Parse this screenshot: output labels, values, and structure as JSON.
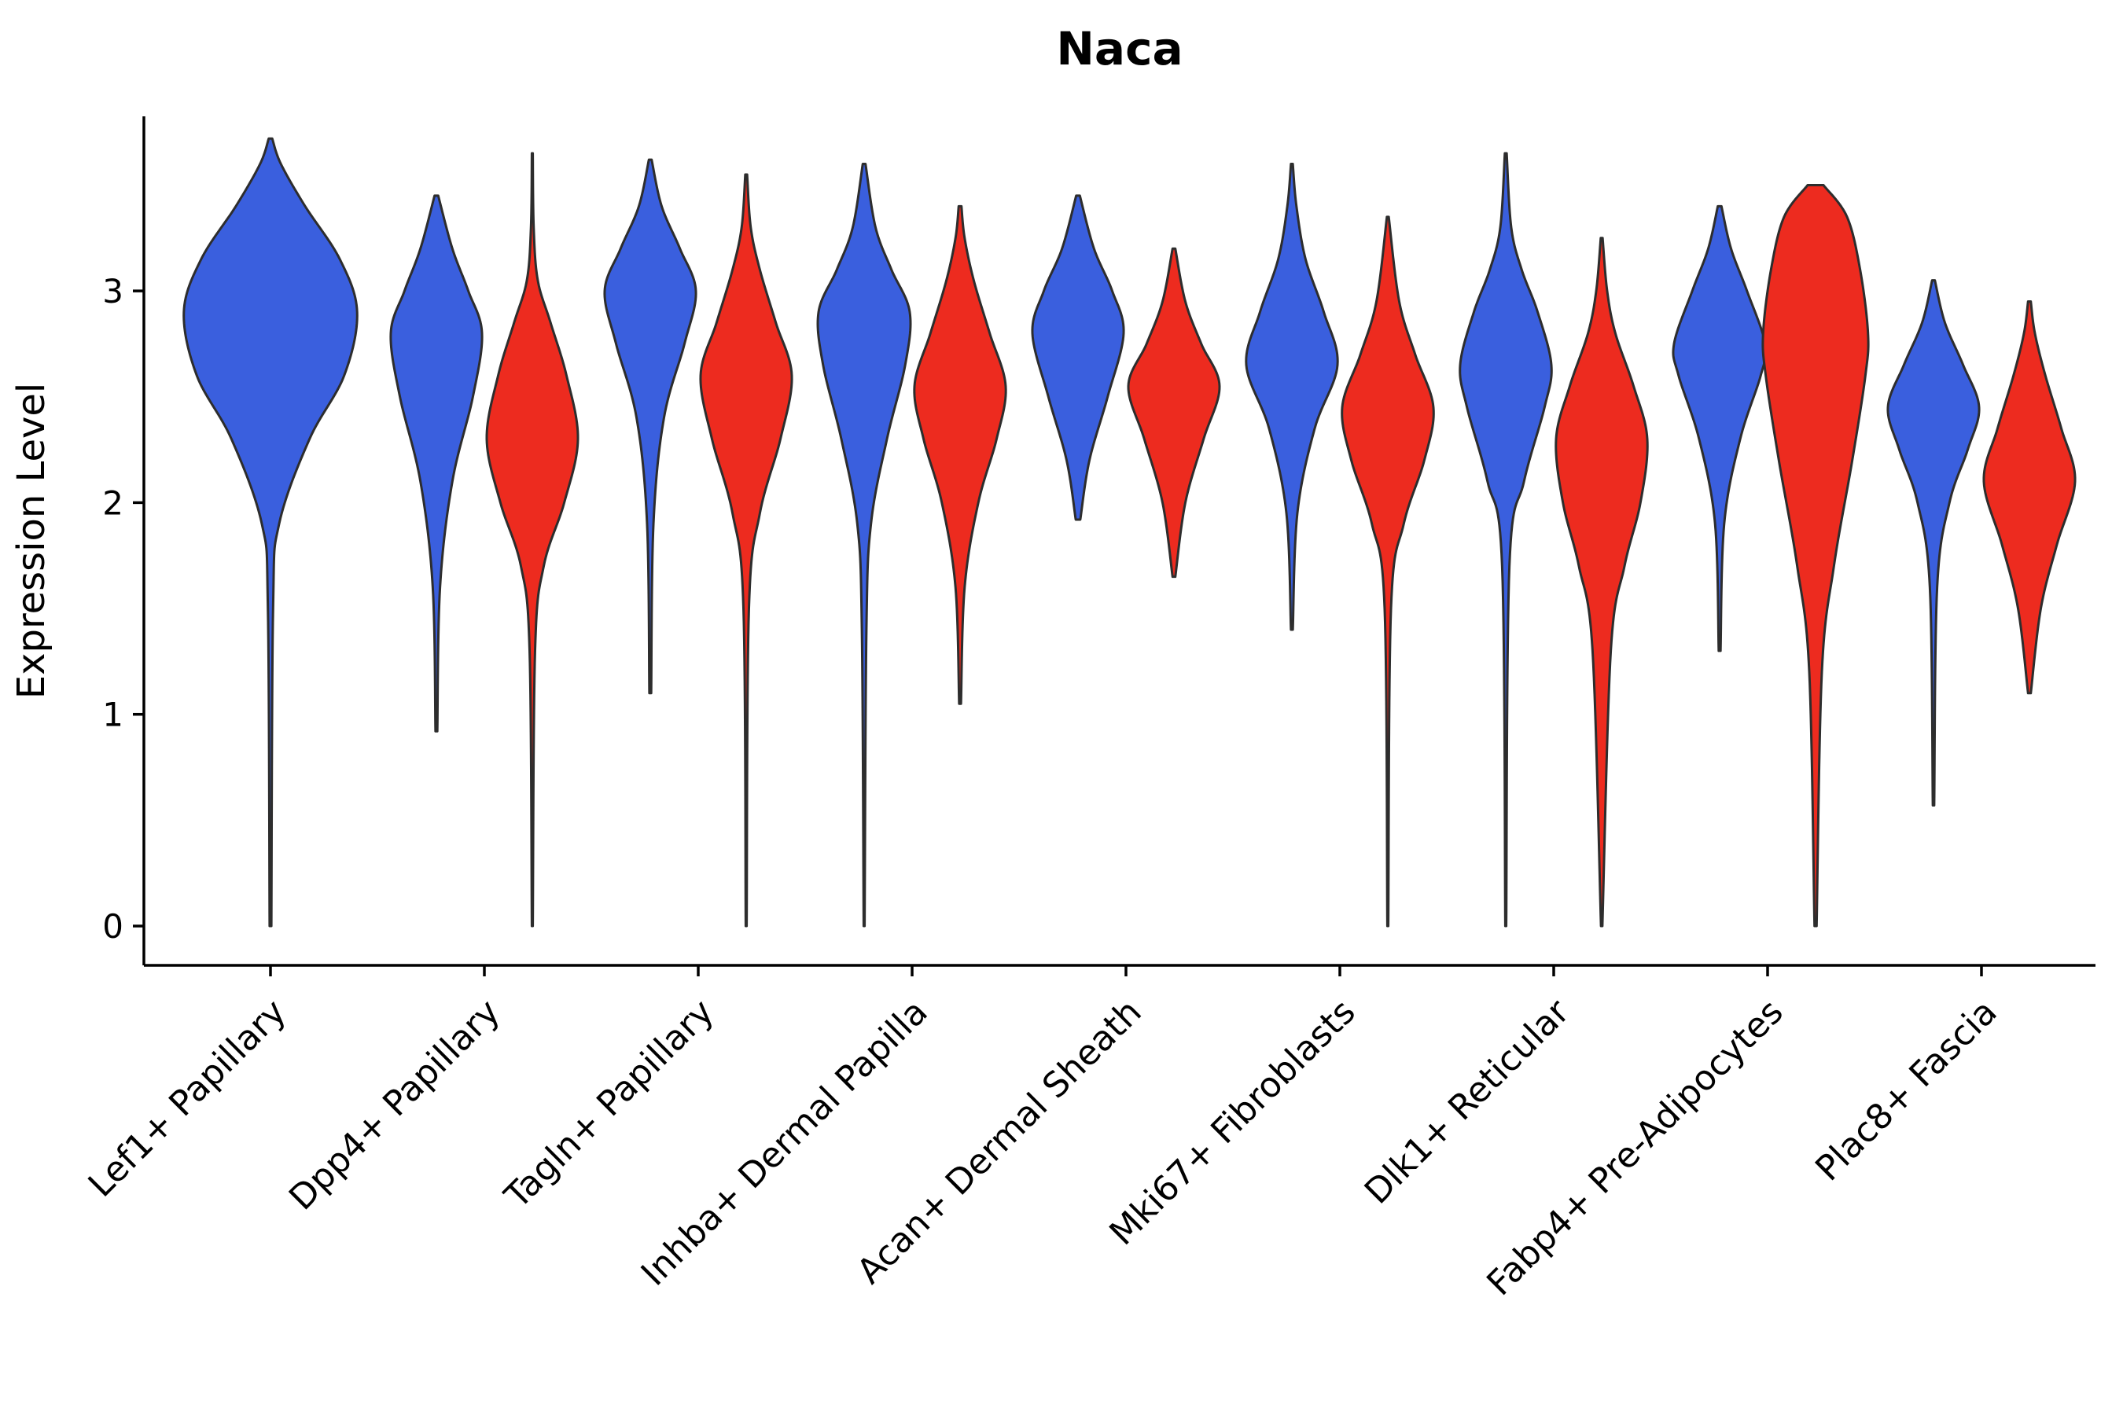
{
  "title": "Naca",
  "axes": {
    "ylabel": "Expression Level",
    "xlabel": "",
    "yticks": [
      0,
      1,
      2,
      3
    ],
    "ylim": [
      -0.15,
      3.85
    ]
  },
  "colors": {
    "blue": "#3A5FDE",
    "red": "#ED2B1F",
    "stroke": "#2d2d2d",
    "axis": "#000000"
  },
  "chart_data": {
    "type": "violin",
    "title": "Naca",
    "ylabel": "Expression Level",
    "xlabel": "",
    "yticks": [
      0,
      1,
      2,
      3
    ],
    "ylim": [
      -0.15,
      3.85
    ],
    "legend": "none",
    "grid": false,
    "categories": [
      "Lef1+ Papillary",
      "Dpp4+ Papillary",
      "Tagln+ Papillary",
      "Inhba+ Dermal Papilla",
      "Acan+ Dermal Sheath",
      "Mki67+ Fibroblasts",
      "Dlk1+ Reticular",
      "Fabp4+ Pre-Adipocytes",
      "Plac8+ Fascia"
    ],
    "palette": {
      "blue": "#3A5FDE",
      "red": "#ED2B1F"
    },
    "violins": [
      {
        "category_index": 0,
        "group": "blue",
        "single": true,
        "width_scale": 1.9,
        "min": 0.0,
        "max": 3.72,
        "peak": 2.9,
        "profile": [
          [
            0.0,
            0.01
          ],
          [
            1.5,
            0.03
          ],
          [
            1.9,
            0.1
          ],
          [
            2.3,
            0.45
          ],
          [
            2.6,
            0.85
          ],
          [
            2.9,
            1.0
          ],
          [
            3.15,
            0.8
          ],
          [
            3.4,
            0.4
          ],
          [
            3.6,
            0.12
          ],
          [
            3.72,
            0.02
          ]
        ]
      },
      {
        "category_index": 1,
        "group": "blue",
        "single": false,
        "width_scale": 1.0,
        "min": 0.92,
        "max": 3.45,
        "peak": 2.8,
        "profile": [
          [
            0.92,
            0.02
          ],
          [
            1.6,
            0.08
          ],
          [
            2.1,
            0.35
          ],
          [
            2.5,
            0.8
          ],
          [
            2.8,
            1.0
          ],
          [
            3.0,
            0.7
          ],
          [
            3.2,
            0.35
          ],
          [
            3.45,
            0.04
          ]
        ]
      },
      {
        "category_index": 1,
        "group": "red",
        "single": false,
        "width_scale": 1.0,
        "min": 0.0,
        "max": 3.65,
        "peak": 2.3,
        "profile": [
          [
            0.0,
            0.01
          ],
          [
            1.3,
            0.06
          ],
          [
            1.7,
            0.25
          ],
          [
            2.0,
            0.7
          ],
          [
            2.3,
            1.0
          ],
          [
            2.6,
            0.75
          ],
          [
            2.85,
            0.4
          ],
          [
            3.05,
            0.12
          ],
          [
            3.3,
            0.03
          ],
          [
            3.65,
            0.01
          ]
        ]
      },
      {
        "category_index": 2,
        "group": "blue",
        "single": false,
        "width_scale": 1.0,
        "min": 1.1,
        "max": 3.62,
        "peak": 3.0,
        "profile": [
          [
            1.1,
            0.02
          ],
          [
            1.9,
            0.07
          ],
          [
            2.4,
            0.3
          ],
          [
            2.75,
            0.75
          ],
          [
            3.0,
            1.0
          ],
          [
            3.2,
            0.65
          ],
          [
            3.4,
            0.25
          ],
          [
            3.62,
            0.03
          ]
        ]
      },
      {
        "category_index": 2,
        "group": "red",
        "single": false,
        "width_scale": 1.0,
        "min": 0.0,
        "max": 3.55,
        "peak": 2.6,
        "profile": [
          [
            0.0,
            0.01
          ],
          [
            1.5,
            0.06
          ],
          [
            1.95,
            0.3
          ],
          [
            2.3,
            0.75
          ],
          [
            2.6,
            1.0
          ],
          [
            2.85,
            0.65
          ],
          [
            3.1,
            0.3
          ],
          [
            3.3,
            0.1
          ],
          [
            3.55,
            0.02
          ]
        ]
      },
      {
        "category_index": 3,
        "group": "blue",
        "single": false,
        "width_scale": 1.0,
        "min": 0.0,
        "max": 3.6,
        "peak": 2.9,
        "profile": [
          [
            0.0,
            0.01
          ],
          [
            1.4,
            0.05
          ],
          [
            1.9,
            0.15
          ],
          [
            2.3,
            0.5
          ],
          [
            2.65,
            0.9
          ],
          [
            2.9,
            1.0
          ],
          [
            3.1,
            0.6
          ],
          [
            3.3,
            0.25
          ],
          [
            3.6,
            0.03
          ]
        ]
      },
      {
        "category_index": 3,
        "group": "red",
        "single": false,
        "width_scale": 1.0,
        "min": 1.05,
        "max": 3.4,
        "peak": 2.55,
        "profile": [
          [
            1.05,
            0.02
          ],
          [
            1.6,
            0.1
          ],
          [
            2.0,
            0.4
          ],
          [
            2.3,
            0.8
          ],
          [
            2.55,
            1.0
          ],
          [
            2.8,
            0.65
          ],
          [
            3.05,
            0.3
          ],
          [
            3.25,
            0.1
          ],
          [
            3.4,
            0.03
          ]
        ]
      },
      {
        "category_index": 4,
        "group": "blue",
        "single": false,
        "width_scale": 1.0,
        "min": 1.92,
        "max": 3.45,
        "peak": 2.8,
        "profile": [
          [
            1.92,
            0.05
          ],
          [
            2.2,
            0.25
          ],
          [
            2.5,
            0.65
          ],
          [
            2.8,
            1.0
          ],
          [
            3.0,
            0.75
          ],
          [
            3.2,
            0.35
          ],
          [
            3.45,
            0.04
          ]
        ]
      },
      {
        "category_index": 4,
        "group": "red",
        "single": false,
        "width_scale": 1.0,
        "min": 1.65,
        "max": 3.2,
        "peak": 2.55,
        "profile": [
          [
            1.65,
            0.03
          ],
          [
            2.0,
            0.25
          ],
          [
            2.3,
            0.65
          ],
          [
            2.55,
            1.0
          ],
          [
            2.75,
            0.6
          ],
          [
            2.95,
            0.25
          ],
          [
            3.2,
            0.03
          ]
        ]
      },
      {
        "category_index": 5,
        "group": "blue",
        "single": false,
        "width_scale": 1.0,
        "min": 1.4,
        "max": 3.6,
        "peak": 2.65,
        "profile": [
          [
            1.4,
            0.02
          ],
          [
            1.95,
            0.12
          ],
          [
            2.35,
            0.5
          ],
          [
            2.65,
            1.0
          ],
          [
            2.9,
            0.7
          ],
          [
            3.15,
            0.3
          ],
          [
            3.4,
            0.1
          ],
          [
            3.6,
            0.02
          ]
        ]
      },
      {
        "category_index": 5,
        "group": "red",
        "single": false,
        "width_scale": 1.0,
        "min": 0.0,
        "max": 3.35,
        "peak": 2.45,
        "profile": [
          [
            0.0,
            0.01
          ],
          [
            1.5,
            0.07
          ],
          [
            1.9,
            0.35
          ],
          [
            2.2,
            0.8
          ],
          [
            2.45,
            1.0
          ],
          [
            2.7,
            0.6
          ],
          [
            2.95,
            0.25
          ],
          [
            3.35,
            0.02
          ]
        ]
      },
      {
        "category_index": 6,
        "group": "blue",
        "single": false,
        "width_scale": 1.0,
        "min": 0.0,
        "max": 3.65,
        "peak": 2.65,
        "profile": [
          [
            0.0,
            0.01
          ],
          [
            1.7,
            0.08
          ],
          [
            2.1,
            0.4
          ],
          [
            2.45,
            0.85
          ],
          [
            2.65,
            1.0
          ],
          [
            2.9,
            0.7
          ],
          [
            3.1,
            0.35
          ],
          [
            3.3,
            0.12
          ],
          [
            3.65,
            0.02
          ]
        ]
      },
      {
        "category_index": 6,
        "group": "red",
        "single": false,
        "width_scale": 1.0,
        "min": 0.0,
        "max": 3.25,
        "peak": 2.3,
        "profile": [
          [
            0.0,
            0.015
          ],
          [
            1.3,
            0.2
          ],
          [
            1.7,
            0.5
          ],
          [
            2.0,
            0.85
          ],
          [
            2.3,
            1.0
          ],
          [
            2.55,
            0.7
          ],
          [
            2.8,
            0.3
          ],
          [
            3.0,
            0.12
          ],
          [
            3.25,
            0.02
          ]
        ]
      },
      {
        "category_index": 7,
        "group": "blue",
        "single": false,
        "width_scale": 1.0,
        "min": 1.3,
        "max": 3.4,
        "peak": 2.75,
        "profile": [
          [
            1.3,
            0.02
          ],
          [
            1.9,
            0.1
          ],
          [
            2.3,
            0.45
          ],
          [
            2.6,
            0.9
          ],
          [
            2.75,
            1.0
          ],
          [
            3.0,
            0.6
          ],
          [
            3.2,
            0.25
          ],
          [
            3.4,
            0.04
          ]
        ]
      },
      {
        "category_index": 7,
        "group": "red",
        "single": false,
        "width_scale": 1.15,
        "min": 0.0,
        "max": 3.5,
        "peak": 2.8,
        "profile": [
          [
            0.0,
            0.02
          ],
          [
            1.2,
            0.12
          ],
          [
            1.7,
            0.35
          ],
          [
            2.2,
            0.7
          ],
          [
            2.6,
            0.95
          ],
          [
            2.8,
            1.0
          ],
          [
            3.1,
            0.85
          ],
          [
            3.35,
            0.6
          ],
          [
            3.5,
            0.15
          ]
        ]
      },
      {
        "category_index": 8,
        "group": "blue",
        "single": false,
        "width_scale": 1.0,
        "min": 0.57,
        "max": 3.05,
        "peak": 2.45,
        "profile": [
          [
            0.57,
            0.015
          ],
          [
            1.6,
            0.08
          ],
          [
            2.0,
            0.35
          ],
          [
            2.25,
            0.75
          ],
          [
            2.45,
            1.0
          ],
          [
            2.65,
            0.65
          ],
          [
            2.85,
            0.25
          ],
          [
            3.05,
            0.03
          ]
        ]
      },
      {
        "category_index": 8,
        "group": "red",
        "single": false,
        "width_scale": 1.0,
        "min": 1.1,
        "max": 2.95,
        "peak": 2.1,
        "profile": [
          [
            1.1,
            0.03
          ],
          [
            1.5,
            0.25
          ],
          [
            1.8,
            0.6
          ],
          [
            2.1,
            1.0
          ],
          [
            2.35,
            0.7
          ],
          [
            2.6,
            0.35
          ],
          [
            2.8,
            0.12
          ],
          [
            2.95,
            0.03
          ]
        ]
      }
    ]
  }
}
